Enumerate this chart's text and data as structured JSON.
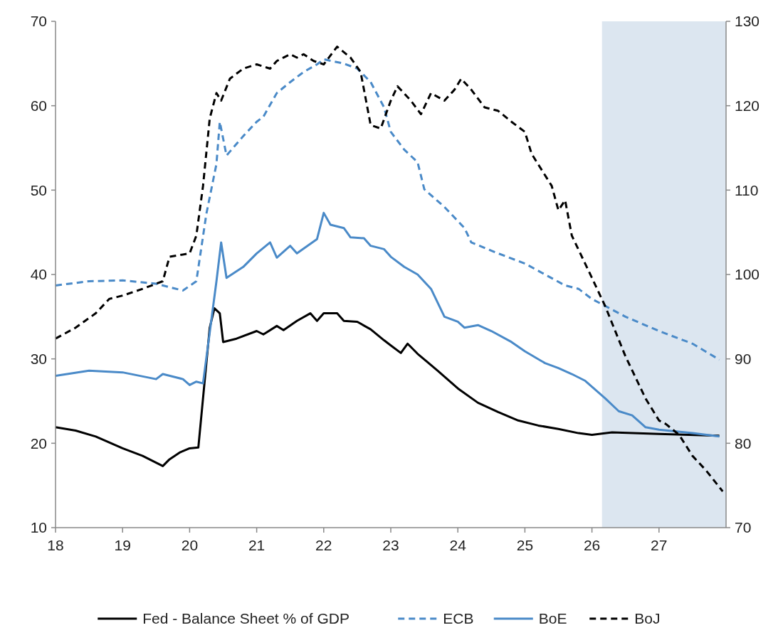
{
  "chart_data": {
    "type": "line",
    "xlim": [
      18,
      28
    ],
    "xticks": [
      18,
      19,
      20,
      21,
      22,
      23,
      24,
      25,
      26,
      27
    ],
    "ylim": [
      10,
      70
    ],
    "yticks": [
      10,
      20,
      30,
      40,
      50,
      60,
      70
    ],
    "y2lim": [
      70,
      130
    ],
    "y2ticks": [
      70,
      80,
      90,
      100,
      110,
      120,
      130
    ],
    "grid": false,
    "legend": "bottom",
    "bands": [
      {
        "axis": "x",
        "from": 26.15,
        "to": 28,
        "color": "#dce6f0"
      }
    ],
    "series": [
      {
        "name": "Fed - Balance Sheet % of GDP",
        "color": "#000000",
        "line_style": "solid",
        "x": [
          18,
          18.3,
          18.6,
          19,
          19.3,
          19.5,
          19.6,
          19.7,
          19.85,
          20,
          20.13,
          20.3,
          20.37,
          20.45,
          20.5,
          20.7,
          21,
          21.1,
          21.3,
          21.4,
          21.6,
          21.8,
          21.9,
          22,
          22.2,
          22.3,
          22.5,
          22.7,
          22.9,
          23,
          23.15,
          23.25,
          23.4,
          23.7,
          24,
          24.3,
          24.6,
          24.9,
          25.2,
          25.5,
          25.8,
          26,
          26.3,
          27,
          27.9
        ],
        "values": [
          21.9,
          21.5,
          20.8,
          19.4,
          18.5,
          17.7,
          17.3,
          18.1,
          18.9,
          19.4,
          19.5,
          33.7,
          36.0,
          35.4,
          32.0,
          32.4,
          33.3,
          32.9,
          33.9,
          33.4,
          34.5,
          35.4,
          34.5,
          35.4,
          35.4,
          34.5,
          34.4,
          33.5,
          32.2,
          31.6,
          30.7,
          31.8,
          30.6,
          28.6,
          26.5,
          24.8,
          23.7,
          22.7,
          22.1,
          21.7,
          21.2,
          21.0,
          21.3,
          21.1,
          20.9
        ]
      },
      {
        "name": "ECB",
        "color": "#4a8ac8",
        "line_style": "dashed",
        "x": [
          18,
          18.5,
          19,
          19.5,
          19.9,
          20.1,
          20.25,
          20.4,
          20.45,
          20.55,
          20.8,
          21,
          21.1,
          21.3,
          21.5,
          21.7,
          21.9,
          22,
          22.3,
          22.5,
          22.7,
          22.9,
          23,
          23.2,
          23.4,
          23.5,
          23.8,
          24.1,
          24.2,
          24.6,
          25,
          25.3,
          25.6,
          25.8,
          26,
          26.5,
          27,
          27.5,
          27.9
        ],
        "values": [
          38.7,
          39.2,
          39.3,
          38.9,
          38.1,
          39.2,
          47.2,
          53.1,
          58.1,
          54.1,
          56.4,
          58.1,
          58.7,
          61.5,
          62.8,
          64.0,
          64.9,
          65.5,
          65.0,
          64.4,
          62.8,
          59.8,
          56.9,
          54.8,
          53.3,
          50.1,
          48.0,
          45.5,
          43.8,
          42.5,
          41.3,
          40.0,
          38.7,
          38.3,
          37.1,
          35.0,
          33.3,
          31.8,
          29.9
        ]
      },
      {
        "name": "BoE",
        "color": "#4a8ac8",
        "line_style": "solid",
        "x": [
          18,
          18.5,
          19,
          19.5,
          19.6,
          19.9,
          20,
          20.1,
          20.2,
          20.4,
          20.47,
          20.55,
          20.8,
          21,
          21.2,
          21.3,
          21.5,
          21.6,
          21.9,
          22,
          22.1,
          22.3,
          22.4,
          22.6,
          22.7,
          22.9,
          23,
          23.2,
          23.4,
          23.6,
          23.8,
          24,
          24.1,
          24.3,
          24.5,
          24.8,
          25,
          25.3,
          25.5,
          25.7,
          25.9,
          26.2,
          26.4,
          26.6,
          26.8,
          27,
          27.5,
          27.9
        ],
        "values": [
          28.0,
          28.6,
          28.4,
          27.6,
          28.2,
          27.6,
          26.9,
          27.3,
          27.1,
          39.2,
          43.8,
          39.6,
          40.9,
          42.5,
          43.8,
          42.0,
          43.4,
          42.5,
          44.2,
          47.3,
          45.9,
          45.5,
          44.4,
          44.3,
          43.4,
          43.0,
          42.1,
          40.9,
          40.0,
          38.3,
          35.0,
          34.4,
          33.7,
          34.0,
          33.3,
          32.0,
          30.9,
          29.5,
          28.9,
          28.2,
          27.4,
          25.3,
          23.8,
          23.3,
          21.9,
          21.6,
          21.2,
          20.8
        ]
      },
      {
        "name": "BoJ",
        "color": "#000000",
        "line_style": "dashed",
        "axis": "y2",
        "x": [
          18,
          18.3,
          18.6,
          18.8,
          19,
          19.3,
          19.6,
          19.7,
          20,
          20.1,
          20.2,
          20.3,
          20.4,
          20.47,
          20.6,
          20.8,
          21,
          21.2,
          21.3,
          21.5,
          21.6,
          21.7,
          21.85,
          22,
          22.2,
          22.4,
          22.55,
          22.7,
          22.85,
          23,
          23.1,
          23.3,
          23.45,
          23.6,
          23.8,
          23.95,
          24.05,
          24.2,
          24.4,
          24.6,
          24.8,
          25,
          25.1,
          25.4,
          25.5,
          25.6,
          25.7,
          26,
          26.2,
          26.5,
          26.8,
          27,
          27.1,
          27.3,
          27.5,
          27.7,
          27.95
        ],
        "values": [
          92.4,
          93.7,
          95.4,
          97.1,
          97.5,
          98.3,
          99.2,
          102.1,
          102.5,
          104.6,
          110.5,
          118.5,
          121.5,
          120.6,
          123.2,
          124.4,
          124.9,
          124.4,
          125.3,
          126.1,
          125.7,
          126.1,
          125.3,
          124.9,
          127.0,
          125.7,
          124.0,
          117.7,
          117.3,
          120.6,
          122.3,
          120.6,
          119.0,
          121.5,
          120.6,
          121.9,
          123.2,
          121.9,
          119.8,
          119.4,
          118.1,
          116.9,
          114.3,
          110.5,
          107.6,
          108.8,
          104.6,
          99.6,
          96.2,
          90.3,
          85.3,
          82.7,
          82.3,
          81.0,
          78.5,
          76.8,
          74.3
        ]
      }
    ]
  }
}
